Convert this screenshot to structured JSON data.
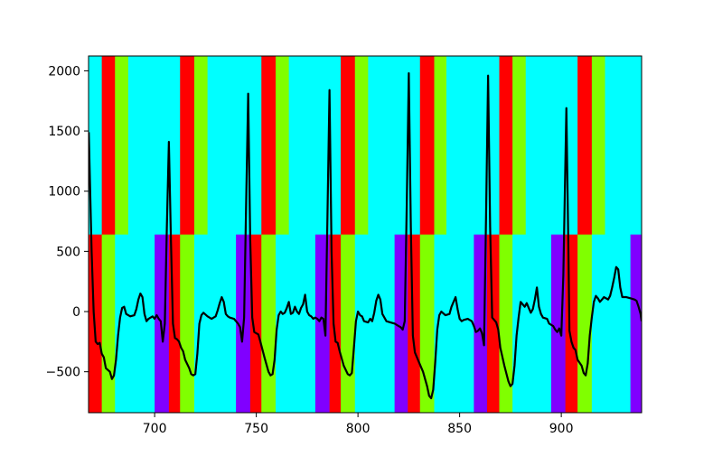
{
  "chart_data": {
    "type": "line",
    "xlim": [
      667.5,
      939.5
    ],
    "ylim": [
      -840,
      2123
    ],
    "xticks": [
      700,
      750,
      800,
      850,
      900
    ],
    "yticks": [
      {
        "value": -500,
        "label": "−500"
      },
      0,
      500,
      1000,
      1500,
      2000
    ],
    "bands": [
      {
        "y_range": [
          640,
          2123
        ],
        "segments": [
          {
            "x": [
              667.5,
              674
            ],
            "color": "#00ffff"
          },
          {
            "x": [
              674,
              680.5
            ],
            "color": "#ff0000"
          },
          {
            "x": [
              680.5,
              687
            ],
            "color": "#80ff00"
          },
          {
            "x": [
              687,
              712.5
            ],
            "color": "#00ffff"
          },
          {
            "x": [
              712.5,
              719.5
            ],
            "color": "#ff0000"
          },
          {
            "x": [
              719.5,
              726
            ],
            "color": "#80ff00"
          },
          {
            "x": [
              726,
              752.5
            ],
            "color": "#00ffff"
          },
          {
            "x": [
              752.5,
              759.5
            ],
            "color": "#ff0000"
          },
          {
            "x": [
              759.5,
              766
            ],
            "color": "#80ff00"
          },
          {
            "x": [
              766,
              791.5
            ],
            "color": "#00ffff"
          },
          {
            "x": [
              791.5,
              798.5
            ],
            "color": "#ff0000"
          },
          {
            "x": [
              798.5,
              805
            ],
            "color": "#80ff00"
          },
          {
            "x": [
              805,
              830.5
            ],
            "color": "#00ffff"
          },
          {
            "x": [
              830.5,
              837.5
            ],
            "color": "#ff0000"
          },
          {
            "x": [
              837.5,
              843.5
            ],
            "color": "#80ff00"
          },
          {
            "x": [
              843.5,
              869.5
            ],
            "color": "#00ffff"
          },
          {
            "x": [
              869.5,
              876
            ],
            "color": "#ff0000"
          },
          {
            "x": [
              876,
              882.5
            ],
            "color": "#80ff00"
          },
          {
            "x": [
              882.5,
              908
            ],
            "color": "#00ffff"
          },
          {
            "x": [
              908,
              915
            ],
            "color": "#ff0000"
          },
          {
            "x": [
              915,
              921.5
            ],
            "color": "#80ff00"
          },
          {
            "x": [
              921.5,
              939.5
            ],
            "color": "#00ffff"
          }
        ]
      },
      {
        "y_range": [
          -840,
          640
        ],
        "segments": [
          {
            "x": [
              667.5,
              674
            ],
            "color": "#ff0000"
          },
          {
            "x": [
              674,
              680.5
            ],
            "color": "#80ff00"
          },
          {
            "x": [
              680.5,
              700
            ],
            "color": "#00ffff"
          },
          {
            "x": [
              700,
              707
            ],
            "color": "#8000ff"
          },
          {
            "x": [
              707,
              712.5
            ],
            "color": "#ff0000"
          },
          {
            "x": [
              712.5,
              719.5
            ],
            "color": "#80ff00"
          },
          {
            "x": [
              719.5,
              740
            ],
            "color": "#00ffff"
          },
          {
            "x": [
              740,
              747
            ],
            "color": "#8000ff"
          },
          {
            "x": [
              747,
              752.5
            ],
            "color": "#ff0000"
          },
          {
            "x": [
              752.5,
              759.5
            ],
            "color": "#80ff00"
          },
          {
            "x": [
              759.5,
              779
            ],
            "color": "#00ffff"
          },
          {
            "x": [
              779,
              786
            ],
            "color": "#8000ff"
          },
          {
            "x": [
              786,
              791.5
            ],
            "color": "#ff0000"
          },
          {
            "x": [
              791.5,
              798.5
            ],
            "color": "#80ff00"
          },
          {
            "x": [
              798.5,
              818
            ],
            "color": "#00ffff"
          },
          {
            "x": [
              818,
              824.5
            ],
            "color": "#8000ff"
          },
          {
            "x": [
              824.5,
              830.5
            ],
            "color": "#ff0000"
          },
          {
            "x": [
              830.5,
              837.5
            ],
            "color": "#80ff00"
          },
          {
            "x": [
              837.5,
              857
            ],
            "color": "#00ffff"
          },
          {
            "x": [
              857,
              863.5
            ],
            "color": "#8000ff"
          },
          {
            "x": [
              863.5,
              869.5
            ],
            "color": "#ff0000"
          },
          {
            "x": [
              869.5,
              876
            ],
            "color": "#80ff00"
          },
          {
            "x": [
              876,
              895
            ],
            "color": "#00ffff"
          },
          {
            "x": [
              895,
              902
            ],
            "color": "#8000ff"
          },
          {
            "x": [
              902,
              908
            ],
            "color": "#ff0000"
          },
          {
            "x": [
              908,
              915
            ],
            "color": "#80ff00"
          },
          {
            "x": [
              915,
              934
            ],
            "color": "#00ffff"
          },
          {
            "x": [
              934,
              939.5
            ],
            "color": "#8000ff"
          }
        ]
      }
    ],
    "series": [
      {
        "color": "#000000",
        "x": [
          667.6,
          669,
          670,
          671,
          672,
          673,
          674,
          675,
          676,
          678,
          679,
          680,
          681,
          682,
          683,
          684,
          685,
          686,
          688,
          690,
          691,
          692,
          693,
          694,
          695,
          696,
          697,
          698,
          699,
          700,
          701,
          702,
          703,
          704,
          705,
          706,
          707,
          708,
          709,
          710,
          711,
          712,
          713,
          714,
          715,
          717,
          718,
          719,
          720,
          721,
          722,
          723,
          724,
          726,
          728,
          730,
          731,
          732,
          733,
          734,
          735,
          736,
          737,
          739,
          741,
          742,
          743,
          744,
          745,
          746,
          747,
          748,
          749,
          750,
          751,
          752,
          754,
          756,
          757,
          758,
          759,
          760,
          761,
          762,
          763,
          764,
          765,
          766,
          767,
          768,
          769,
          770,
          771,
          772,
          773,
          774,
          775,
          776,
          777,
          778,
          779,
          780,
          781,
          782,
          783,
          784,
          785,
          786,
          787,
          788,
          789,
          790,
          791,
          793,
          795,
          796,
          797,
          798,
          799,
          800,
          801,
          802,
          803,
          805,
          806,
          807,
          808,
          809,
          810,
          811,
          812,
          813,
          814,
          816,
          818,
          820,
          821,
          822,
          823,
          824,
          825,
          826,
          827,
          828,
          829,
          830,
          832,
          834,
          835,
          836,
          837,
          838,
          839,
          840,
          841,
          843,
          845,
          846,
          847,
          848,
          849,
          850,
          851,
          852,
          854,
          856,
          857,
          858,
          859,
          860,
          861,
          862,
          863,
          864,
          865,
          866,
          867,
          868,
          869,
          870,
          872,
          874,
          875,
          876,
          877,
          878,
          879,
          880,
          881,
          882,
          883,
          884,
          885,
          886,
          887,
          888,
          889,
          890,
          891,
          893,
          894,
          896,
          897,
          898,
          899,
          900,
          901,
          902.5,
          903.5,
          904,
          905,
          906,
          907,
          908,
          910,
          911,
          912,
          913,
          914,
          915,
          916,
          917,
          918,
          919,
          920,
          921,
          922,
          923,
          924,
          925,
          926,
          927,
          928,
          929,
          930,
          932,
          934,
          936,
          937,
          938,
          939,
          939.5
        ],
        "values": [
          1490,
          500,
          0,
          -250,
          -270,
          -260,
          -350,
          -380,
          -470,
          -500,
          -560,
          -530,
          -400,
          -200,
          -50,
          30,
          40,
          -20,
          -40,
          -30,
          20,
          100,
          150,
          120,
          -20,
          -80,
          -60,
          -50,
          -40,
          -60,
          -30,
          -60,
          -80,
          -250,
          -100,
          700,
          1410,
          600,
          -100,
          -220,
          -230,
          -250,
          -300,
          -330,
          -400,
          -470,
          -520,
          -530,
          -520,
          -350,
          -100,
          -30,
          -10,
          -40,
          -60,
          -40,
          10,
          70,
          120,
          80,
          -20,
          -40,
          -50,
          -60,
          -100,
          -130,
          -250,
          -50,
          900,
          1810,
          600,
          -50,
          -170,
          -180,
          -190,
          -250,
          -380,
          -500,
          -530,
          -520,
          -400,
          -150,
          -30,
          0,
          -20,
          -10,
          30,
          80,
          -20,
          -10,
          40,
          0,
          -20,
          30,
          60,
          140,
          0,
          -30,
          -40,
          -60,
          -50,
          -60,
          -80,
          -50,
          -60,
          -200,
          800,
          1840,
          500,
          -100,
          -250,
          -260,
          -330,
          -450,
          -520,
          -530,
          -510,
          -300,
          -80,
          0,
          -30,
          -40,
          -80,
          -90,
          -60,
          -80,
          -10,
          90,
          140,
          100,
          -20,
          -50,
          -80,
          -90,
          -100,
          -120,
          -130,
          -150,
          -80,
          900,
          1980,
          700,
          -200,
          -340,
          -380,
          -420,
          -500,
          -620,
          -700,
          -720,
          -650,
          -420,
          -150,
          -30,
          0,
          -30,
          -20,
          40,
          80,
          120,
          20,
          -60,
          -80,
          -70,
          -60,
          -80,
          -120,
          -170,
          -160,
          -140,
          -180,
          -280,
          800,
          1960,
          700,
          -50,
          -70,
          -90,
          -150,
          -300,
          -450,
          -580,
          -620,
          -600,
          -450,
          -200,
          -50,
          80,
          60,
          40,
          70,
          30,
          -10,
          20,
          100,
          200,
          40,
          -20,
          -50,
          -60,
          -100,
          -120,
          -150,
          -170,
          -140,
          -200,
          300,
          1690,
          500,
          -160,
          -250,
          -300,
          -320,
          -400,
          -450,
          -510,
          -530,
          -430,
          -200,
          -50,
          80,
          130,
          110,
          80,
          100,
          120,
          110,
          100,
          130,
          200,
          280,
          370,
          350,
          200,
          120,
          120,
          110,
          100,
          90,
          40,
          -20,
          -80
        ]
      }
    ]
  }
}
